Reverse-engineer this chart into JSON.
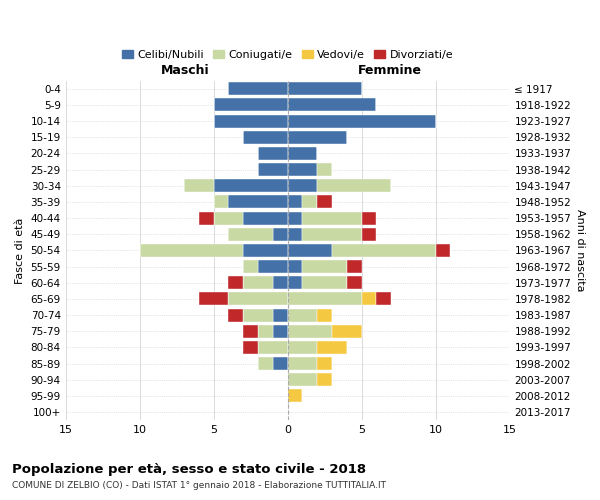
{
  "age_groups": [
    "0-4",
    "5-9",
    "10-14",
    "15-19",
    "20-24",
    "25-29",
    "30-34",
    "35-39",
    "40-44",
    "45-49",
    "50-54",
    "55-59",
    "60-64",
    "65-69",
    "70-74",
    "75-79",
    "80-84",
    "85-89",
    "90-94",
    "95-99",
    "100+"
  ],
  "birth_years": [
    "2013-2017",
    "2008-2012",
    "2003-2007",
    "1998-2002",
    "1993-1997",
    "1988-1992",
    "1983-1987",
    "1978-1982",
    "1973-1977",
    "1968-1972",
    "1963-1967",
    "1958-1962",
    "1953-1957",
    "1948-1952",
    "1943-1947",
    "1938-1942",
    "1933-1937",
    "1928-1932",
    "1923-1927",
    "1918-1922",
    "≤ 1917"
  ],
  "colors": {
    "celibi": "#4472a8",
    "coniugati": "#c8d9a4",
    "vedovi": "#f5c842",
    "divorziati": "#c0282a"
  },
  "males": {
    "celibi": [
      4,
      5,
      5,
      3,
      2,
      2,
      5,
      4,
      3,
      1,
      3,
      2,
      1,
      0,
      1,
      1,
      0,
      1,
      0,
      0,
      0
    ],
    "coniugati": [
      0,
      0,
      0,
      0,
      0,
      0,
      2,
      1,
      2,
      3,
      7,
      1,
      2,
      4,
      2,
      1,
      2,
      1,
      0,
      0,
      0
    ],
    "vedovi": [
      0,
      0,
      0,
      0,
      0,
      0,
      0,
      0,
      0,
      0,
      0,
      0,
      0,
      0,
      0,
      0,
      0,
      0,
      0,
      0,
      0
    ],
    "divorziati": [
      0,
      0,
      0,
      0,
      0,
      0,
      0,
      0,
      1,
      0,
      0,
      0,
      1,
      2,
      1,
      1,
      1,
      0,
      0,
      0,
      0
    ]
  },
  "females": {
    "celibi": [
      5,
      6,
      10,
      4,
      2,
      2,
      2,
      1,
      1,
      1,
      3,
      1,
      1,
      0,
      0,
      0,
      0,
      0,
      0,
      0,
      0
    ],
    "coniugati": [
      0,
      0,
      0,
      0,
      0,
      1,
      5,
      1,
      4,
      4,
      7,
      3,
      3,
      5,
      2,
      3,
      2,
      2,
      2,
      0,
      0
    ],
    "vedovi": [
      0,
      0,
      0,
      0,
      0,
      0,
      0,
      0,
      0,
      0,
      0,
      0,
      0,
      1,
      1,
      2,
      2,
      1,
      1,
      1,
      0
    ],
    "divorziati": [
      0,
      0,
      0,
      0,
      0,
      0,
      0,
      1,
      1,
      1,
      1,
      1,
      1,
      1,
      0,
      0,
      0,
      0,
      0,
      0,
      0
    ]
  },
  "title": "Popolazione per età, sesso e stato civile - 2018",
  "subtitle": "COMUNE DI ZELBIO (CO) - Dati ISTAT 1° gennaio 2018 - Elaborazione TUTTITALIA.IT",
  "xlabel_left": "Maschi",
  "xlabel_right": "Femmine",
  "ylabel": "Fasce di età",
  "ylabel_right": "Anni di nascita",
  "xlim": 15,
  "legend_labels": [
    "Celibi/Nubili",
    "Coniugati/e",
    "Vedovi/e",
    "Divorziati/e"
  ]
}
